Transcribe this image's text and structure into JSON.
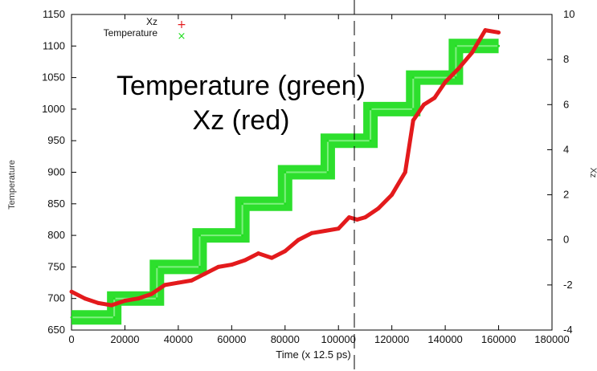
{
  "chart_data": {
    "type": "scatter",
    "xlabel": "Time (x 12.5 ps)",
    "ylabel_left": "Temperature",
    "ylabel_right": "Xz",
    "xlim": [
      0,
      180000
    ],
    "ylim_left": [
      650,
      1150
    ],
    "ylim_right": [
      -4,
      10
    ],
    "x_ticks": [
      "0",
      "20000",
      "40000",
      "60000",
      "80000",
      "100000",
      "120000",
      "140000",
      "160000",
      "180000"
    ],
    "y_left_ticks": [
      "650",
      "700",
      "750",
      "800",
      "850",
      "900",
      "950",
      "1000",
      "1050",
      "1100",
      "1150"
    ],
    "y_right_ticks": [
      "-4",
      "-2",
      "0",
      "2",
      "4",
      "6",
      "8",
      "10"
    ],
    "grid": false,
    "legend_position": "top-left",
    "overlay_text": [
      "Temperature (green)",
      "Xz (red)"
    ],
    "series": [
      {
        "name": "Xz",
        "axis": "right",
        "color": "#e31a1c",
        "marker": "+",
        "x": [
          0,
          5000,
          10000,
          15000,
          20000,
          25000,
          30000,
          35000,
          40000,
          45000,
          50000,
          55000,
          60000,
          65000,
          70000,
          75000,
          80000,
          85000,
          90000,
          95000,
          100000,
          104000,
          107000,
          110000,
          115000,
          120000,
          125000,
          128000,
          132000,
          136000,
          140000,
          145000,
          150000,
          155000,
          160000
        ],
        "y": [
          -2.3,
          -2.6,
          -2.8,
          -2.9,
          -2.7,
          -2.6,
          -2.4,
          -2.0,
          -1.9,
          -1.8,
          -1.5,
          -1.2,
          -1.1,
          -0.9,
          -0.6,
          -0.8,
          -0.5,
          0.0,
          0.3,
          0.4,
          0.5,
          1.0,
          0.9,
          1.0,
          1.4,
          2.0,
          3.0,
          5.3,
          6.0,
          6.3,
          7.0,
          7.6,
          8.3,
          9.3,
          9.2
        ]
      },
      {
        "name": "Temperature",
        "axis": "left",
        "color": "#22dd22",
        "marker": "x",
        "x": [
          0,
          16000,
          16000,
          32000,
          32000,
          48000,
          48000,
          64000,
          64000,
          80000,
          80000,
          96000,
          96000,
          112000,
          112000,
          128000,
          128000,
          144000,
          144000,
          160000
        ],
        "y": [
          670,
          670,
          700,
          700,
          750,
          750,
          800,
          800,
          850,
          850,
          900,
          900,
          950,
          950,
          1000,
          1000,
          1050,
          1050,
          1100,
          1100
        ]
      }
    ]
  }
}
